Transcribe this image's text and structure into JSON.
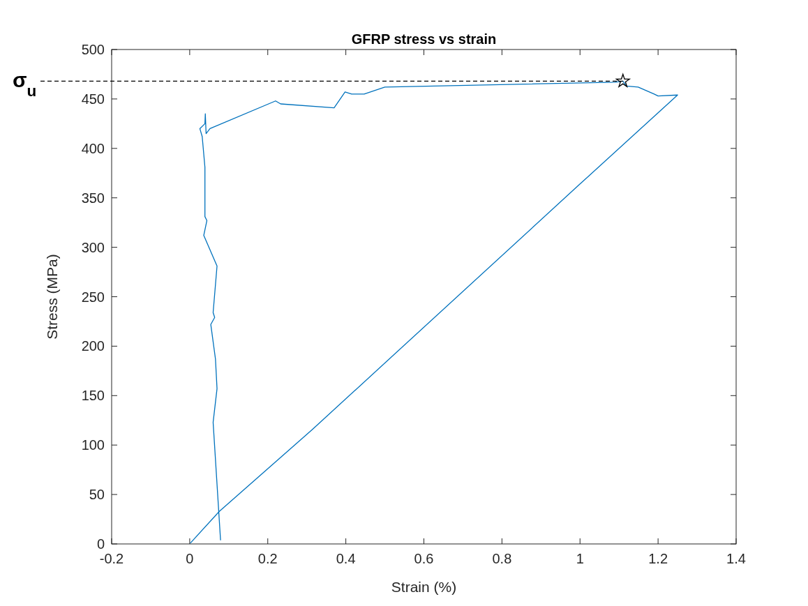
{
  "chart_data": {
    "type": "line",
    "title": "GFRP stress vs strain",
    "xlabel": "Strain (%)",
    "ylabel": "Stress (MPa)",
    "xlim": [
      -0.2,
      1.4
    ],
    "xticks": [
      -0.2,
      0,
      0.2,
      0.4,
      0.6,
      0.8,
      1,
      1.2,
      1.4
    ],
    "ylim": [
      0,
      500
    ],
    "yticks": [
      0,
      50,
      100,
      150,
      200,
      250,
      300,
      350,
      400,
      450,
      500
    ],
    "grid": false,
    "line_style": "solid",
    "marker": "none",
    "series": [
      {
        "color": "#0072bd",
        "x": [
          0.079,
          0.06,
          0.07,
          0.066,
          0.054,
          0.064,
          0.06,
          0.07,
          0.036,
          0.044,
          0.039,
          0.039,
          0.032,
          0.026,
          0.039,
          0.04,
          0.042,
          0.052,
          0.22,
          0.233,
          0.37,
          0.398,
          0.415,
          0.447,
          0.5,
          1.09,
          1.11,
          1.119,
          1.149,
          1.19,
          1.2,
          1.25,
          1,
          0.315,
          0.076,
          0.002
        ],
        "values": [
          4,
          123,
          157,
          187,
          222,
          229,
          234,
          281,
          312,
          327,
          331,
          381,
          412,
          420,
          425,
          435,
          415,
          420,
          448,
          445,
          441,
          457,
          455,
          455,
          462,
          467,
          468,
          463,
          462,
          455,
          453,
          454,
          364,
          116,
          33,
          1
        ]
      },
      {
        "type": "scatter",
        "marker": "star",
        "color": "#000000",
        "x": [
          1.11
        ],
        "values": [
          468
        ]
      }
    ],
    "ref_lines": [
      {
        "axis": "y",
        "value": 468,
        "label": "σ$_{u}$",
        "color": "#000000",
        "line_style": "dashed"
      }
    ]
  }
}
